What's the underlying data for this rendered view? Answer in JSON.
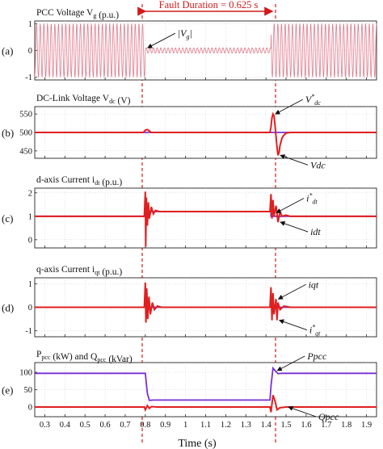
{
  "colors": {
    "red": "#e01f1f",
    "purple": "#7a2fd6",
    "pink": "#e07a8a",
    "axis": "#222222",
    "grid": "#c8c8c8"
  },
  "figure": {
    "fault_label": "Fault Duration = 0.625 s",
    "xlabel": "Time (s)"
  },
  "chart_data": [
    {
      "type": "line",
      "panel_label": "(a)",
      "title": "PCC Voltage V_g (p.u.)",
      "xlim": [
        0.25,
        1.95
      ],
      "ylim": [
        -1.1,
        1.1
      ],
      "yticks": [
        "-1",
        "0",
        "1"
      ],
      "grid": true,
      "series": [
        {
          "color": "pink",
          "kind": "ac-envelope",
          "amplitude_pre": 1,
          "amplitude_fault": 0.1,
          "amplitude_post": 1,
          "fault_start": 0.8,
          "fault_end": 1.425
        }
      ],
      "annotations": [
        {
          "text": "|V_g|",
          "x": 0.8,
          "y": 0.1
        }
      ]
    },
    {
      "type": "line",
      "panel_label": "(b)",
      "title": "DC-Link Voltage V_dc (V)",
      "xlim": [
        0.25,
        1.95
      ],
      "ylim": [
        430,
        570
      ],
      "yticks": [
        "450",
        "500",
        "550"
      ],
      "grid": true,
      "series": [
        {
          "color": "purple",
          "name": "V*dc",
          "points": [
            [
              0.25,
              500
            ],
            [
              1.95,
              500
            ]
          ]
        },
        {
          "color": "red",
          "name": "Vdc",
          "points": [
            [
              0.25,
              500
            ],
            [
              0.79,
              500
            ],
            [
              0.8,
              506
            ],
            [
              0.81,
              508
            ],
            [
              0.82,
              504
            ],
            [
              0.83,
              500
            ],
            [
              1.42,
              500
            ],
            [
              1.425,
              515
            ],
            [
              1.43,
              540
            ],
            [
              1.435,
              550
            ],
            [
              1.44,
              545
            ],
            [
              1.445,
              520
            ],
            [
              1.45,
              490
            ],
            [
              1.455,
              460
            ],
            [
              1.46,
              438
            ],
            [
              1.465,
              445
            ],
            [
              1.47,
              465
            ],
            [
              1.48,
              485
            ],
            [
              1.49,
              493
            ],
            [
              1.5,
              498
            ],
            [
              1.52,
              500
            ],
            [
              1.95,
              500
            ]
          ]
        }
      ],
      "annotations": [
        {
          "text": "V*dc",
          "x": 1.435,
          "y": 550
        },
        {
          "text": "Vdc",
          "x": 1.46,
          "y": 438
        }
      ]
    },
    {
      "type": "line",
      "panel_label": "(c)",
      "title": "d-axis Current i_dt (p.u.)",
      "xlim": [
        0.25,
        1.95
      ],
      "ylim": [
        -0.35,
        2.2
      ],
      "yticks": [
        "0",
        "1",
        "2"
      ],
      "grid": true,
      "series": [
        {
          "color": "purple",
          "name": "i*dt",
          "points": [
            [
              0.25,
              1
            ],
            [
              0.8,
              1
            ],
            [
              0.8,
              1.2
            ],
            [
              1.425,
              1.2
            ],
            [
              1.425,
              1
            ],
            [
              1.95,
              1
            ]
          ]
        },
        {
          "color": "red",
          "name": "idt",
          "points": [
            [
              0.25,
              1
            ],
            [
              0.795,
              1
            ],
            [
              0.8,
              2.05
            ],
            [
              0.802,
              -0.3
            ],
            [
              0.805,
              1.8
            ],
            [
              0.81,
              0.6
            ],
            [
              0.815,
              1.6
            ],
            [
              0.82,
              0.9
            ],
            [
              0.83,
              1.4
            ],
            [
              0.84,
              1.1
            ],
            [
              0.85,
              1.25
            ],
            [
              0.87,
              1.2
            ],
            [
              1.42,
              1.2
            ],
            [
              1.425,
              1.95
            ],
            [
              1.43,
              0.9
            ],
            [
              1.435,
              1.7
            ],
            [
              1.44,
              1.0
            ],
            [
              1.45,
              1.45
            ],
            [
              1.46,
              0.75
            ],
            [
              1.47,
              1.2
            ],
            [
              1.48,
              1.0
            ],
            [
              1.5,
              1.05
            ],
            [
              1.52,
              1.0
            ],
            [
              1.95,
              1
            ]
          ]
        }
      ],
      "annotations": [
        {
          "text": "i*dt",
          "x": 1.44,
          "y": 1.15
        },
        {
          "text": "idt",
          "x": 1.46,
          "y": 0.75
        }
      ]
    },
    {
      "type": "line",
      "panel_label": "(d)",
      "title": "q-axis Current i_qt (p.u.)",
      "xlim": [
        0.25,
        1.95
      ],
      "ylim": [
        -1.25,
        1.25
      ],
      "yticks": [
        "-1",
        "0",
        "1"
      ],
      "grid": true,
      "series": [
        {
          "color": "purple",
          "name": "i*qt",
          "points": [
            [
              0.25,
              0
            ],
            [
              1.95,
              0
            ]
          ]
        },
        {
          "color": "red",
          "name": "iqt",
          "points": [
            [
              0.25,
              0
            ],
            [
              0.795,
              0
            ],
            [
              0.8,
              1.05
            ],
            [
              0.803,
              -0.65
            ],
            [
              0.807,
              0.8
            ],
            [
              0.812,
              -0.5
            ],
            [
              0.818,
              0.45
            ],
            [
              0.825,
              -0.3
            ],
            [
              0.835,
              0.2
            ],
            [
              0.845,
              -0.1
            ],
            [
              0.86,
              0.05
            ],
            [
              0.88,
              0
            ],
            [
              1.42,
              0
            ],
            [
              1.425,
              0.85
            ],
            [
              1.43,
              -0.55
            ],
            [
              1.435,
              0.6
            ],
            [
              1.44,
              -0.3
            ],
            [
              1.45,
              0.35
            ],
            [
              1.455,
              -0.55
            ],
            [
              1.46,
              0.2
            ],
            [
              1.47,
              -0.1
            ],
            [
              1.49,
              0.05
            ],
            [
              1.52,
              0
            ],
            [
              1.95,
              0
            ]
          ]
        }
      ],
      "annotations": [
        {
          "text": "iqt",
          "x": 1.45,
          "y": 0.35
        },
        {
          "text": "i*qt",
          "x": 1.455,
          "y": -0.55
        }
      ]
    },
    {
      "type": "line",
      "panel_label": "(e)",
      "title": "P_pcc (kW) and Q_pcc (kVar)",
      "xlim": [
        0.25,
        1.95
      ],
      "ylim": [
        -28,
        128
      ],
      "yticks": [
        "0",
        "50",
        "100"
      ],
      "grid": true,
      "series": [
        {
          "color": "purple",
          "name": "Ppcc",
          "points": [
            [
              0.25,
              97
            ],
            [
              0.79,
              97
            ],
            [
              0.8,
              97
            ],
            [
              0.81,
              40
            ],
            [
              0.82,
              19
            ],
            [
              0.84,
              20
            ],
            [
              1.42,
              20
            ],
            [
              1.425,
              60
            ],
            [
              1.435,
              112
            ],
            [
              1.445,
              105
            ],
            [
              1.46,
              96
            ],
            [
              1.48,
              97
            ],
            [
              1.95,
              97
            ]
          ]
        },
        {
          "color": "red",
          "name": "Qpcc",
          "points": [
            [
              0.25,
              0
            ],
            [
              0.795,
              0
            ],
            [
              0.8,
              -8
            ],
            [
              0.81,
              4
            ],
            [
              0.82,
              -4
            ],
            [
              0.83,
              1
            ],
            [
              0.86,
              0
            ],
            [
              1.42,
              0
            ],
            [
              1.425,
              -15
            ],
            [
              1.435,
              34
            ],
            [
              1.445,
              18
            ],
            [
              1.455,
              -8
            ],
            [
              1.47,
              -2
            ],
            [
              1.5,
              0
            ],
            [
              1.95,
              0
            ]
          ]
        }
      ],
      "annotations": [
        {
          "text": "Ppcc",
          "x": 1.445,
          "y": 105
        },
        {
          "text": "Qpcc",
          "x": 1.5,
          "y": 0
        }
      ]
    }
  ],
  "xticks": [
    "0.3",
    "0.4",
    "0.5",
    "0.6",
    "0.7",
    "0.8",
    "0.9",
    "1",
    "1.1",
    "1.2",
    "1.3",
    "1.4",
    "1.5",
    "1.6",
    "1.7",
    "1.8",
    "1.9"
  ]
}
